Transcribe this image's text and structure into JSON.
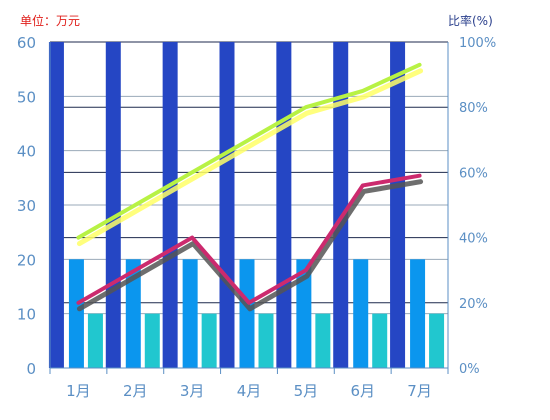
{
  "chart_data": {
    "type": "bar",
    "unit_label": "单位：万元",
    "ratio_label": "比率(%)",
    "categories": [
      "1月",
      "2月",
      "3月",
      "4月",
      "5月",
      "6月",
      "7月"
    ],
    "ylim_left": [
      0,
      60
    ],
    "yticks_left": [
      0,
      10,
      20,
      30,
      40,
      50,
      60
    ],
    "ylim_right": [
      0,
      100
    ],
    "yticks_right": [
      "0%",
      "20%",
      "40%",
      "60%",
      "80%",
      "100%"
    ],
    "grid": true,
    "bar_series": [
      {
        "values": [
          60,
          60,
          60,
          60,
          60,
          60,
          60
        ],
        "color": "#2546c4"
      },
      {
        "values": [
          20,
          20,
          20,
          20,
          20,
          20,
          20
        ],
        "color": "#0b96ee"
      },
      {
        "values": [
          10,
          10,
          10,
          10,
          10,
          10,
          10
        ],
        "color": "#21c7cf"
      }
    ],
    "line_series": [
      {
        "values": [
          40,
          50,
          60,
          70,
          80,
          85,
          93
        ],
        "color": "#b8f244",
        "shadow": "#ffff66",
        "axis": "right"
      },
      {
        "values": [
          20,
          30,
          40,
          20,
          30,
          56,
          59
        ],
        "color": "#cc2a6e",
        "shadow": "#555555",
        "axis": "right"
      }
    ]
  }
}
